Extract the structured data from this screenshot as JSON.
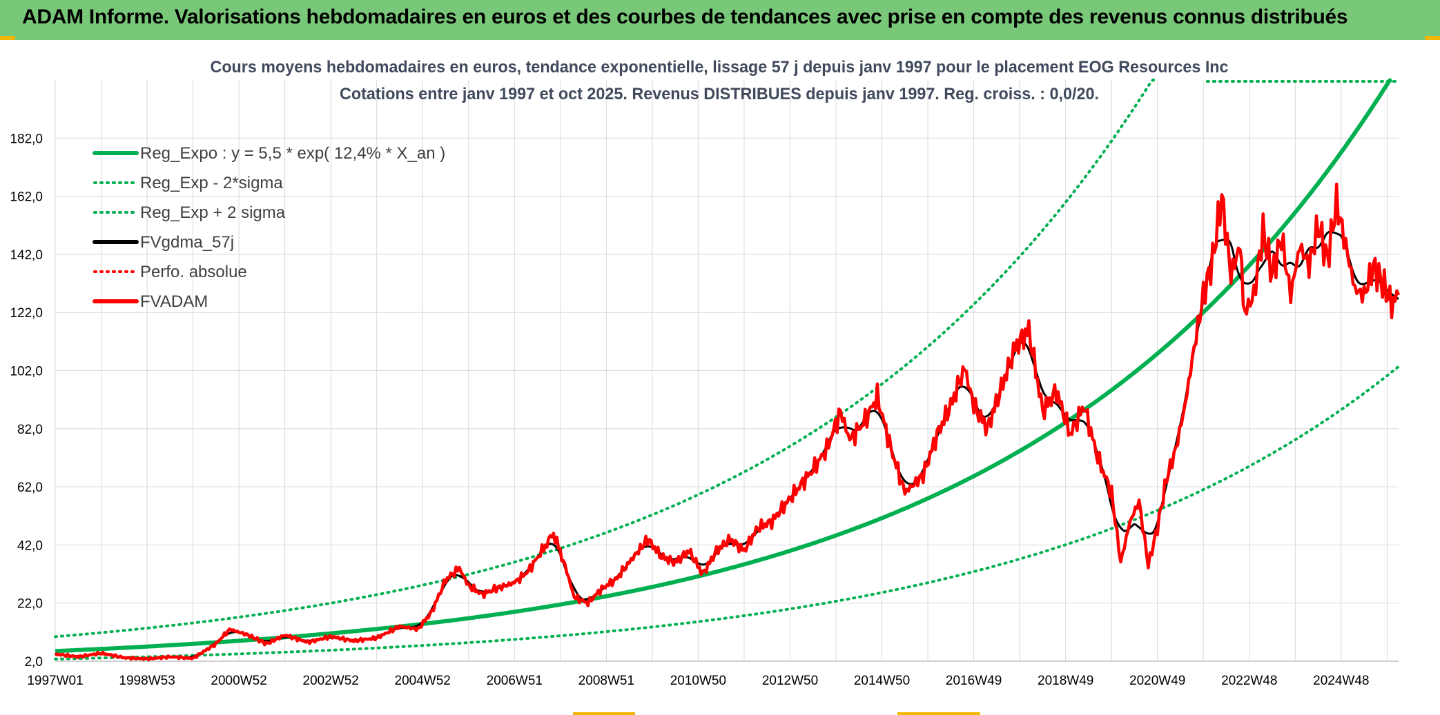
{
  "header": {
    "title": "ADAM Informe. Valorisations hebdomadaires en euros et des courbes de tendances avec prise en compte des revenus connus distribués"
  },
  "colors": {
    "header_bg": "#79c879",
    "trend_green": "#00b050",
    "price_red": "#ff0000",
    "mavg_black": "#000000",
    "grid": "#d9d9d9",
    "title_text": "#404a5c"
  },
  "chart_data": {
    "type": "line",
    "title": "Cours moyens hebdomadaires en euros, tendance exponentielle, lissage 57 j depuis janv 1997 pour le placement EOG Resources Inc",
    "subtitle": "Cotations entre janv 1997 et oct 2025. Revenus DISTRIBUES depuis janv 1997. Reg. croiss. : 0,0/20.",
    "x_tick_labels": [
      "1997W01",
      "1998W53",
      "2000W52",
      "2002W52",
      "2004W52",
      "2006W51",
      "2008W51",
      "2010W50",
      "2012W50",
      "2014W50",
      "2016W49",
      "2018W49",
      "2020W49",
      "2022W48",
      "2024W48"
    ],
    "x_tick_years": [
      1997.0,
      1999.0,
      2001.0,
      2003.0,
      2005.0,
      2007.0,
      2009.0,
      2011.0,
      2013.0,
      2015.0,
      2017.0,
      2019.0,
      2021.0,
      2023.0,
      2025.0
    ],
    "x_range": [
      1997.0,
      2026.25
    ],
    "y_tick_labels": [
      "2,0",
      "22,0",
      "42,0",
      "62,0",
      "82,0",
      "102,0",
      "122,0",
      "142,0",
      "162,0",
      "182,0"
    ],
    "y_ticks": [
      2,
      22,
      42,
      62,
      82,
      102,
      122,
      142,
      162,
      182
    ],
    "ylim": [
      2,
      202
    ],
    "legend": [
      {
        "label": "Reg_Expo : y = 5,5 * exp( 12,4% *  X_an )",
        "color": "#00b050",
        "style": "solid"
      },
      {
        "label": "Reg_Exp - 2*sigma",
        "color": "#00b050",
        "style": "dotted"
      },
      {
        "label": "Reg_Exp + 2 sigma",
        "color": "#00b050",
        "style": "dotted"
      },
      {
        "label": "FVgdma_57j",
        "color": "#000000",
        "style": "solid"
      },
      {
        "label": "Perfo. absolue",
        "color": "#ff0000",
        "style": "dotted"
      },
      {
        "label": "FVADAM",
        "color": "#ff0000",
        "style": "solid"
      }
    ],
    "regression": {
      "a": 5.5,
      "rate": 0.124,
      "upper_factor": 1.9,
      "lower_factor": 0.5
    },
    "series": [
      {
        "name": "FVADAM",
        "x": [
          1997.0,
          1997.5,
          1998.0,
          1998.5,
          1999.0,
          1999.5,
          2000.0,
          2000.5,
          2000.8,
          2001.2,
          2001.6,
          2002.0,
          2002.5,
          2003.0,
          2003.5,
          2004.0,
          2004.5,
          2004.9,
          2005.2,
          2005.5,
          2005.8,
          2006.0,
          2006.3,
          2006.6,
          2007.0,
          2007.3,
          2007.6,
          2007.85,
          2008.1,
          2008.3,
          2008.6,
          2008.9,
          2009.2,
          2009.5,
          2009.9,
          2010.2,
          2010.5,
          2010.8,
          2011.1,
          2011.4,
          2011.7,
          2012.0,
          2012.3,
          2012.6,
          2012.9,
          2013.2,
          2013.5,
          2013.8,
          2014.1,
          2014.3,
          2014.6,
          2014.9,
          2015.2,
          2015.5,
          2015.9,
          2016.2,
          2016.5,
          2016.8,
          2017.0,
          2017.3,
          2017.6,
          2017.9,
          2018.2,
          2018.5,
          2018.8,
          2019.1,
          2019.4,
          2019.7,
          2020.0,
          2020.2,
          2020.4,
          2020.6,
          2020.8,
          2021.0,
          2021.2,
          2021.4,
          2021.6,
          2021.8,
          2022.0,
          2022.2,
          2022.4,
          2022.6,
          2022.8,
          2022.9,
          2023.1,
          2023.3,
          2023.5,
          2023.7,
          2023.9,
          2024.1,
          2024.3,
          2024.5,
          2024.7,
          2024.9,
          2025.1,
          2025.3,
          2025.5,
          2025.7,
          2025.9,
          2026.1,
          2026.25
        ],
        "values": [
          4.5,
          3.5,
          4.8,
          3.2,
          2.8,
          3.5,
          3.0,
          8.0,
          13.0,
          11.0,
          8.0,
          11.0,
          8.5,
          10.5,
          9.0,
          10.0,
          14.0,
          13.0,
          19.0,
          30.0,
          34.0,
          28.0,
          25.0,
          27.0,
          29.0,
          33.0,
          40.0,
          46.0,
          35.0,
          24.0,
          22.0,
          27.0,
          30.0,
          36.0,
          44.0,
          38.0,
          36.0,
          40.0,
          32.0,
          40.0,
          44.0,
          40.0,
          48.0,
          50.0,
          56.0,
          62.0,
          68.0,
          75.0,
          88.0,
          78.0,
          84.0,
          93.0,
          75.0,
          60.0,
          66.0,
          80.0,
          90.0,
          103.0,
          90.0,
          82.0,
          96.0,
          110.0,
          116.0,
          88.0,
          95.0,
          80.0,
          90.0,
          72.0,
          60.0,
          36.0,
          50.0,
          57.0,
          35.0,
          48.0,
          65.0,
          75.0,
          90.0,
          110.0,
          128.0,
          140.0,
          162.0,
          135.0,
          145.0,
          122.0,
          128.0,
          150.0,
          135.0,
          148.0,
          128.0,
          145.0,
          138.0,
          152.0,
          140.0,
          160.0,
          145.0,
          130.0,
          128.0,
          138.0,
          132.0,
          125.0,
          128.0
        ]
      }
    ]
  }
}
